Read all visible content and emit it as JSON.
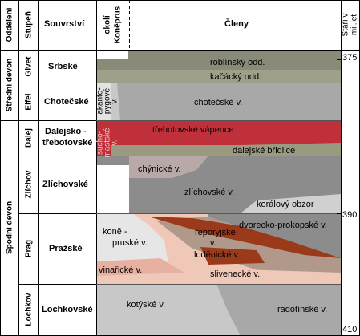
{
  "header": {
    "oddeleni": "Oddělení",
    "stupen": "Stupeň",
    "souvrstvi": "Souvrství",
    "okoli_line1": "okolí",
    "okoli_line2": "Koněprus",
    "cleny": "Členy",
    "stari_line1": "Stáří v",
    "stari_line2": "mil.let"
  },
  "oddeleni": [
    {
      "name": "Střední devon"
    },
    {
      "name": "Spodní devon"
    }
  ],
  "stupne": [
    {
      "name": "Givet"
    },
    {
      "name": "Eifel"
    },
    {
      "name": "Dalej"
    },
    {
      "name": "Zlíchov"
    },
    {
      "name": "Prag"
    },
    {
      "name": "Lochkov"
    }
  ],
  "souvrstvi": [
    {
      "name": "Srbské"
    },
    {
      "name": "Chotečské"
    },
    {
      "name_line1": "Dalejsko -",
      "name_line2": "třebotovské"
    },
    {
      "name": "Zlíchovské"
    },
    {
      "name": "Pražské"
    },
    {
      "name": "Lochkovské"
    }
  ],
  "koneprus": {
    "akanto_line1": "akanto-",
    "akanto_line2": "pygové",
    "akanto_line3": "v.",
    "suchomast_line1": "sucho-",
    "suchomast_line2": "mastské",
    "suchomast_line3": "v."
  },
  "cleny": {
    "roblinsky": "roblínský odd.",
    "kacacky": "kačácký odd.",
    "chotecske": "chotečské v.",
    "trebotovske": "třebotovské vápence",
    "dalejske": "dalejské břidlice",
    "chynicke": "chýnické v.",
    "zlichovske": "zlíchovské v.",
    "koralovy": "korálový obzor",
    "konepruske_line1": "koně -",
    "konepruske_line2": "pruské v.",
    "dvorecko": "dvorecko-prokopské v.",
    "reporyjske_line1": "řeporyjské",
    "reporyjske_line2": "v.",
    "lodenicke": "loděnické v.",
    "vinaricke": "vinařické v.",
    "slivenecke": "slivenecké v.",
    "kotyske": "kotýské v.",
    "radotinske": "radotínské v."
  },
  "ages": {
    "a375": "375",
    "a390": "390",
    "a410": "410"
  },
  "colors": {
    "givet": "#8a8a78",
    "kacacky": "#a0a08a",
    "chotecske": "#a8a8a8",
    "dalej_red": "#c0303a",
    "dalejske": "#9a9a80",
    "zlichov_gray": "#8c8c8c",
    "chynicke": "#b8a8a8",
    "koralovy": "#d0d0d0",
    "prag_pink": "#f0c8b8",
    "reporyje": "#9a3a1a",
    "lodenice": "#b0988a",
    "konep_light": "#e6e6e6",
    "lochkov": "#c8c8c8",
    "radotin": "#a8a8a8"
  }
}
